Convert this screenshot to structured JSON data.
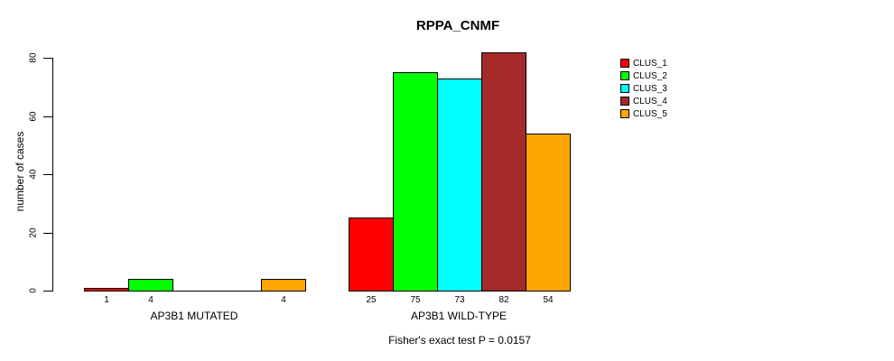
{
  "title": "RPPA_CNMF",
  "footer": "Fisher's exact test P = 0.0157",
  "chart_data": {
    "type": "bar",
    "title": "RPPA_CNMF",
    "categories": [
      "AP3B1 MUTATED",
      "AP3B1 WILD-TYPE"
    ],
    "series": [
      {
        "name": "CLUS_1",
        "color": "#FF0000",
        "values": [
          1,
          25
        ]
      },
      {
        "name": "CLUS_2",
        "color": "#00FF00",
        "values": [
          4,
          75
        ]
      },
      {
        "name": "CLUS_3",
        "color": "#00FFFF",
        "values": [
          0,
          73
        ]
      },
      {
        "name": "CLUS_4",
        "color": "#A52A2A",
        "values": [
          0,
          82
        ]
      },
      {
        "name": "CLUS_5",
        "color": "#FFA500",
        "values": [
          4,
          54
        ]
      }
    ],
    "xlabel": "",
    "ylabel": "number of cases",
    "ylim": [
      0,
      80
    ],
    "yticks": [
      0,
      20,
      40,
      60,
      80
    ],
    "grid": false,
    "legend_position": "right",
    "bar_value_labels": {
      "AP3B1 MUTATED": [
        "1",
        "4",
        "",
        "",
        "4"
      ],
      "AP3B1 WILD-TYPE": [
        "25",
        "75",
        "73",
        "82",
        "54"
      ]
    },
    "annotation": "Fisher's exact test P = 0.0157"
  }
}
